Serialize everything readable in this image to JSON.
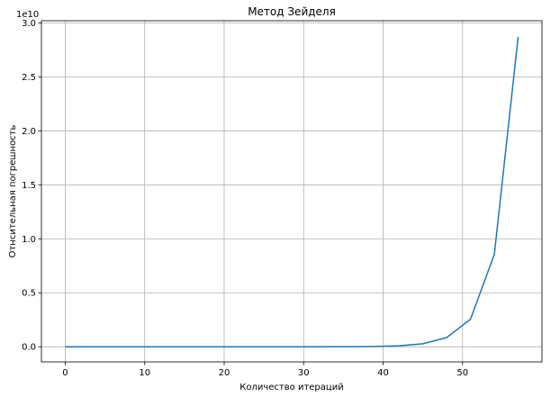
{
  "chart_data": {
    "type": "line",
    "title": "Метод Зейделя",
    "xlabel": "Количество итераций",
    "ylabel": "Отнсительная погрешность",
    "offset_text": "1e10",
    "grid": true,
    "line_color": "#1f77b4",
    "xlim": [
      -3,
      60
    ],
    "ylim": [
      -0.14,
      3.02
    ],
    "y_scale_factor": 10000000000,
    "xticks": [
      0,
      10,
      20,
      30,
      40,
      50
    ],
    "xtick_labels": [
      "0",
      "10",
      "20",
      "30",
      "40",
      "50"
    ],
    "yticks": [
      0.0,
      0.5,
      1.0,
      1.5,
      2.0,
      2.5,
      3.0
    ],
    "ytick_labels": [
      "0.0",
      "0.5",
      "1.0",
      "1.5",
      "2.0",
      "2.5",
      "3.0"
    ],
    "series": [
      {
        "x": [
          0,
          3,
          6,
          9,
          12,
          15,
          18,
          21,
          24,
          27,
          30,
          33,
          36,
          39,
          42,
          45,
          48,
          51,
          54,
          57
        ],
        "y": [
          0,
          0,
          0,
          0,
          0,
          0,
          0,
          0,
          0,
          0,
          0.0001,
          0.0003,
          0.001,
          0.003,
          0.009,
          0.028,
          0.085,
          0.255,
          0.855,
          2.87
        ]
      }
    ]
  }
}
